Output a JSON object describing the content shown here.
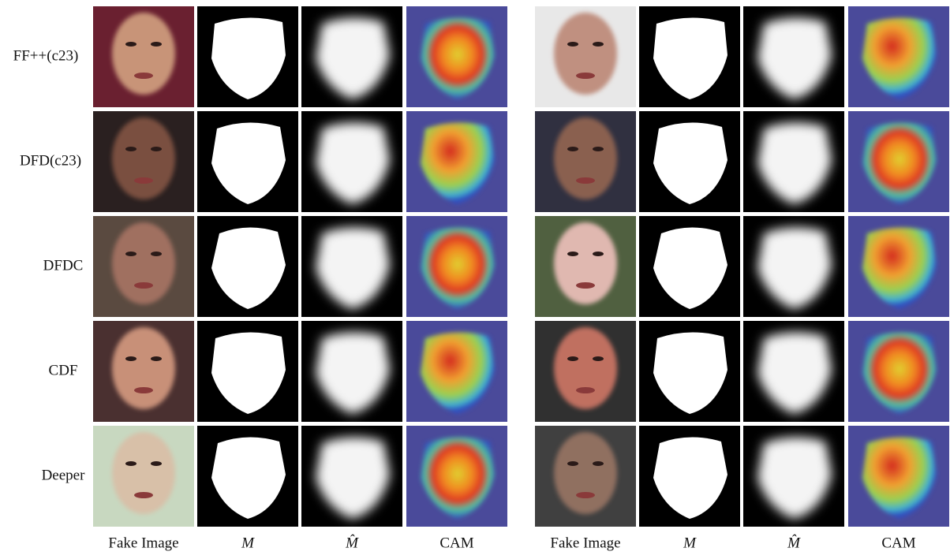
{
  "figure": {
    "row_labels": [
      "FF++(c23)",
      "DFD(c23)",
      "DFDC",
      "CDF",
      "Deeper"
    ],
    "column_labels": {
      "left": [
        "Fake Image",
        "M",
        "M̂",
        "CAM"
      ],
      "right": [
        "Fake Image",
        "M",
        "M̂",
        "CAM"
      ]
    }
  }
}
